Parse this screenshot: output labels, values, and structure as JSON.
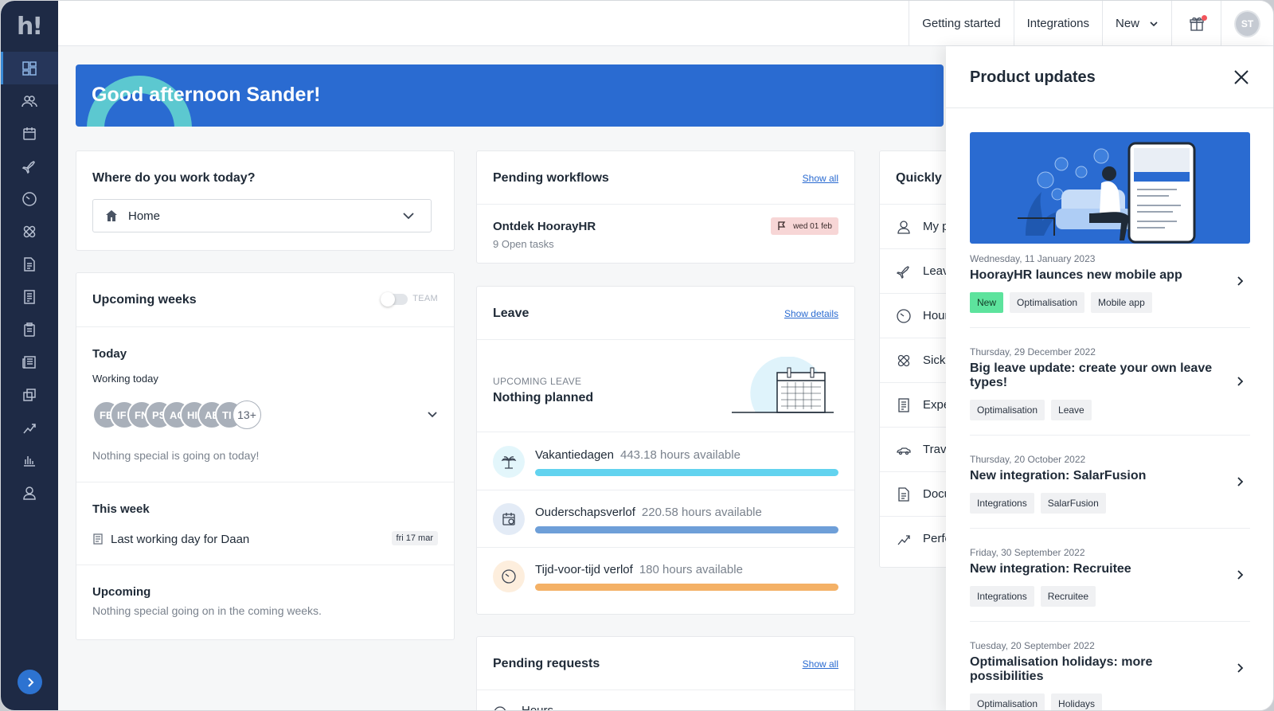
{
  "sidebar": {
    "logo": "h!",
    "items": [
      {
        "icon": "dashboard-icon"
      },
      {
        "icon": "people-icon"
      },
      {
        "icon": "calendar-icon"
      },
      {
        "icon": "plane-icon"
      },
      {
        "icon": "clock-icon"
      },
      {
        "icon": "bandage-icon"
      },
      {
        "icon": "document-icon"
      },
      {
        "icon": "receipt-icon"
      },
      {
        "icon": "clipboard-icon"
      },
      {
        "icon": "newspaper-icon"
      },
      {
        "icon": "copy-icon"
      },
      {
        "icon": "performance-icon"
      },
      {
        "icon": "bar-chart-icon"
      },
      {
        "icon": "user-icon"
      }
    ]
  },
  "topbar": {
    "getting_started": "Getting started",
    "integrations": "Integrations",
    "new": "New",
    "avatar_initials": "ST"
  },
  "banner": {
    "greeting": "Good afternoon Sander!"
  },
  "work_today": {
    "title": "Where do you work today?",
    "selected": "Home"
  },
  "upcoming": {
    "title": "Upcoming weeks",
    "toggle_label": "TEAM",
    "today_title": "Today",
    "working_today": "Working today",
    "avatars": [
      "FE",
      "IF",
      "FN",
      "PS",
      "AC",
      "HI",
      "AE",
      "TI"
    ],
    "more_count": "13+",
    "today_note": "Nothing special is going on today!",
    "week_title": "This week",
    "week_item": "Last working day for Daan",
    "week_date": "fri 17 mar",
    "upcoming_title": "Upcoming",
    "upcoming_note": "Nothing special going on in the coming weeks."
  },
  "workflows": {
    "title": "Pending workflows",
    "show_all": "Show all",
    "item_title": "Ontdek HoorayHR",
    "item_sub": "9 Open tasks",
    "item_date": "wed 01 feb"
  },
  "leave": {
    "title": "Leave",
    "show_details": "Show details",
    "upcoming_label": "UPCOMING LEAVE",
    "upcoming_value": "Nothing planned",
    "types": [
      {
        "name": "Vakantiedagen",
        "hours": "443.18 hours available",
        "color": "#62d3ef",
        "icon_bg": "#e3f6fb",
        "fill": 1.0
      },
      {
        "name": "Ouderschapsverlof",
        "hours": "220.58 hours available",
        "color": "#6e9fd8",
        "icon_bg": "#e3ebf6",
        "fill": 1.0
      },
      {
        "name": "Tijd-voor-tijd verlof",
        "hours": "180 hours available",
        "color": "#f4b166",
        "icon_bg": "#fdeedd",
        "fill": 1.0
      }
    ]
  },
  "pending_requests": {
    "title": "Pending requests",
    "show_all": "Show all",
    "first_item": "Hours"
  },
  "quickly": {
    "title": "Quickly r",
    "items": [
      "My p",
      "Leav",
      "Hour",
      "Sick",
      "Expe",
      "Trave",
      "Docu",
      "Perfo"
    ]
  },
  "updates": {
    "title": "Product updates",
    "items": [
      {
        "date": "Wednesday, 11 January 2023",
        "title": "HoorayHR launces new mobile app",
        "tags": [
          "New",
          "Optimalisation",
          "Mobile app"
        ]
      },
      {
        "date": "Thursday, 29 December 2022",
        "title": "Big leave update: create your own leave types!",
        "tags": [
          "Optimalisation",
          "Leave"
        ]
      },
      {
        "date": "Thursday, 20 October 2022",
        "title": "New integration: SalarFusion",
        "tags": [
          "Integrations",
          "SalarFusion"
        ]
      },
      {
        "date": "Friday, 30 September 2022",
        "title": "New integration: Recruitee",
        "tags": [
          "Integrations",
          "Recruitee"
        ]
      },
      {
        "date": "Tuesday, 20 September 2022",
        "title": "Optimalisation holidays: more possibilities",
        "tags": [
          "Optimalisation",
          "Holidays"
        ]
      }
    ]
  }
}
